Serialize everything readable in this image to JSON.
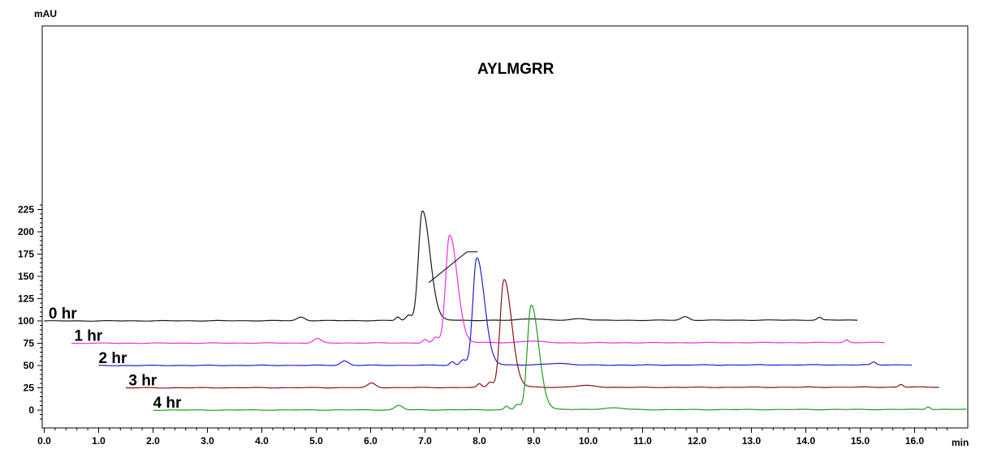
{
  "chart_data": {
    "type": "line",
    "title": "",
    "xlabel": "min",
    "ylabel": "mAU",
    "xlim": [
      0,
      16.6
    ],
    "ylim": [
      -12,
      235
    ],
    "x_ticks": [
      0.0,
      1.0,
      2.0,
      3.0,
      4.0,
      5.0,
      6.0,
      7.0,
      8.0,
      9.0,
      10.0,
      11.0,
      12.0,
      13.0,
      14.0,
      15.0,
      16.0
    ],
    "x_tick_labels": [
      "0.0",
      "1.0",
      "2.0",
      "3.0",
      "4.0",
      "5.0",
      "6.0",
      "7.0",
      "8.0",
      "9.0",
      "10.0",
      "11.0",
      "12.0",
      "13.0",
      "14.0",
      "15.0",
      "16.0"
    ],
    "y_ticks": [
      0,
      25,
      50,
      75,
      100,
      125,
      150,
      175,
      200,
      225
    ],
    "y_tick_labels": [
      "0",
      "25",
      "50",
      "75",
      "100",
      "125",
      "150",
      "175",
      "200",
      "225"
    ],
    "grid": false,
    "annotation": {
      "text": "AYLMGRR",
      "x": 6.95,
      "y": 223
    },
    "series": [
      {
        "name": "0 hr",
        "color": "#1a1a1a",
        "x_start": 0.0,
        "x_end": 14.95,
        "baseline": 100,
        "end_value": 101,
        "label_x": 0.08,
        "peaks": [
          [
            4.72,
            4,
            0.07
          ],
          [
            6.5,
            4,
            0.04
          ],
          [
            6.7,
            6,
            0.05
          ],
          [
            6.95,
            123,
            0.07
          ],
          [
            8.95,
            2,
            0.2
          ],
          [
            9.85,
            2,
            0.15
          ],
          [
            11.78,
            4,
            0.07
          ],
          [
            14.25,
            3,
            0.04
          ]
        ]
      },
      {
        "name": "1 hr",
        "color": "#ee2ee0",
        "x_start": 0.5,
        "x_end": 15.45,
        "baseline": 75,
        "end_value": 75.8,
        "label_x": 0.55,
        "peaks": [
          [
            5.02,
            5,
            0.07
          ],
          [
            7.0,
            4,
            0.04
          ],
          [
            7.2,
            6,
            0.05
          ],
          [
            7.45,
            121,
            0.07
          ],
          [
            8.95,
            2,
            0.2
          ],
          [
            14.75,
            3,
            0.04
          ]
        ]
      },
      {
        "name": "2 hr",
        "color": "#1f1fd6",
        "x_start": 1.0,
        "x_end": 15.95,
        "baseline": 50,
        "end_value": 50.8,
        "label_x": 1.0,
        "peaks": [
          [
            5.52,
            5,
            0.07
          ],
          [
            7.5,
            4,
            0.04
          ],
          [
            7.7,
            6,
            0.05
          ],
          [
            7.95,
            120,
            0.07
          ],
          [
            9.45,
            2,
            0.2
          ],
          [
            15.25,
            3,
            0.04
          ]
        ]
      },
      {
        "name": "3 hr",
        "color": "#8b1212",
        "x_start": 1.5,
        "x_end": 16.45,
        "baseline": 25,
        "end_value": 25.8,
        "label_x": 1.55,
        "peaks": [
          [
            6.02,
            5,
            0.07
          ],
          [
            8.0,
            4,
            0.04
          ],
          [
            8.2,
            6,
            0.05
          ],
          [
            8.45,
            121,
            0.07
          ],
          [
            9.95,
            2,
            0.2
          ],
          [
            15.75,
            3,
            0.04
          ]
        ]
      },
      {
        "name": "4 hr",
        "color": "#1e9a1e",
        "x_start": 2.0,
        "x_end": 16.95,
        "baseline": 0,
        "end_value": 0.8,
        "label_x": 2.0,
        "peaks": [
          [
            6.52,
            5,
            0.07
          ],
          [
            8.5,
            4,
            0.04
          ],
          [
            8.7,
            6,
            0.05
          ],
          [
            8.95,
            117,
            0.07
          ],
          [
            10.45,
            2,
            0.2
          ],
          [
            16.25,
            3,
            0.04
          ]
        ]
      }
    ]
  }
}
